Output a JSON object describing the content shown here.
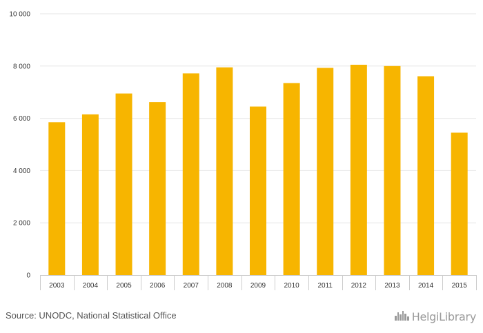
{
  "chart_data": {
    "type": "bar",
    "categories": [
      "2003",
      "2004",
      "2005",
      "2006",
      "2007",
      "2008",
      "2009",
      "2010",
      "2011",
      "2012",
      "2013",
      "2014",
      "2015"
    ],
    "values": [
      5850,
      6150,
      6950,
      6620,
      7720,
      7950,
      6450,
      7350,
      7930,
      8050,
      8000,
      7610,
      5450
    ],
    "ylim": [
      0,
      10000
    ],
    "yticks": [
      0,
      2000,
      4000,
      6000,
      8000,
      10000
    ],
    "ytick_labels": [
      "0",
      "2 000",
      "4 000",
      "6 000",
      "8 000",
      "10 000"
    ],
    "bar_color": "#F7B500",
    "grid": true,
    "title": "",
    "xlabel": "",
    "ylabel": ""
  },
  "footer": {
    "source": "Source: UNODC, National Statistical Office",
    "brand": "HelgiLibrary",
    "brand_icon": "city-skyline-icon"
  }
}
